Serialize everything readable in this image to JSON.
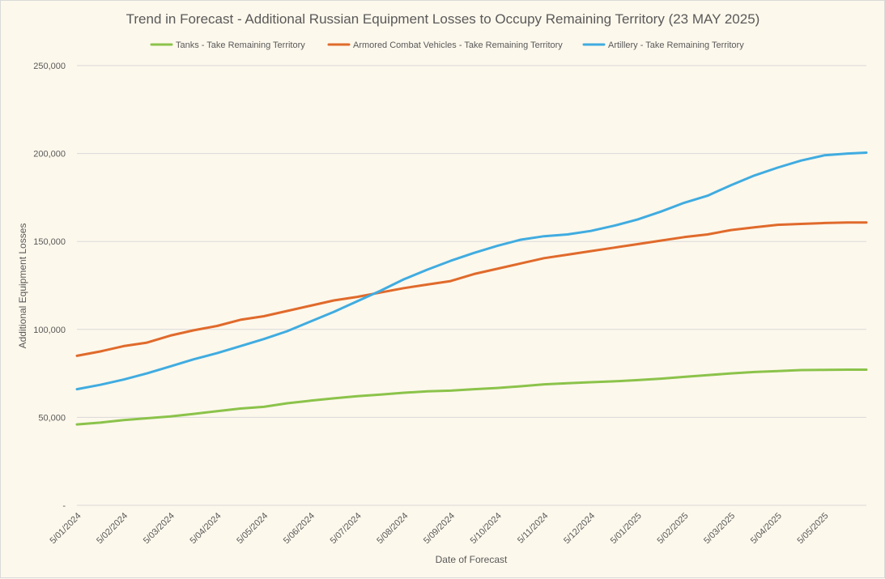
{
  "chart_data": {
    "type": "line",
    "title": "Trend in Forecast - Additional Russian Equipment Losses to Occupy Remaining Territory (23 MAY 2025)",
    "xlabel": "Date of Forecast",
    "ylabel": "Additional Equipment Losses",
    "ylim": [
      0,
      250000
    ],
    "yticks": [
      0,
      50000,
      100000,
      150000,
      200000,
      250000
    ],
    "ytick_labels": [
      "-",
      "50,000",
      "100,000",
      "150,000",
      "200,000",
      "250,000"
    ],
    "xticks": [
      "5/01/2024",
      "5/02/2024",
      "5/03/2024",
      "5/04/2024",
      "5/05/2024",
      "5/06/2024",
      "5/07/2024",
      "5/08/2024",
      "5/09/2024",
      "5/10/2024",
      "5/11/2024",
      "5/12/2024",
      "5/01/2025",
      "5/02/2025",
      "5/03/2025",
      "5/04/2025",
      "5/05/2025"
    ],
    "xlim": [
      0,
      16.9
    ],
    "grid": true,
    "legend_position": "top",
    "series": [
      {
        "name": "Tanks - Take Remaining Territory",
        "color": "#8bc34a",
        "x": [
          0,
          0.5,
          1,
          1.5,
          2,
          2.5,
          3,
          3.5,
          4,
          4.5,
          5,
          5.5,
          6,
          6.5,
          7,
          7.5,
          8,
          8.5,
          9,
          9.5,
          10,
          10.5,
          11,
          11.5,
          12,
          12.5,
          13,
          13.5,
          14,
          14.5,
          15,
          15.5,
          16,
          16.5,
          16.9
        ],
        "values": [
          46000,
          47000,
          48500,
          49500,
          50500,
          52000,
          53500,
          55000,
          56000,
          58000,
          59500,
          60800,
          62000,
          63000,
          64000,
          64800,
          65200,
          66000,
          66700,
          67700,
          68800,
          69400,
          70000,
          70500,
          71200,
          72000,
          73000,
          74000,
          75000,
          75800,
          76300,
          76900,
          77000,
          77100,
          77100
        ]
      },
      {
        "name": "Armored Combat Vehicles - Take Remaining Territory",
        "color": "#e06a2b",
        "x": [
          0,
          0.5,
          1,
          1.5,
          2,
          2.5,
          3,
          3.5,
          4,
          4.5,
          5,
          5.5,
          6,
          6.5,
          7,
          7.5,
          8,
          8.5,
          9,
          9.5,
          10,
          10.5,
          11,
          11.5,
          12,
          12.5,
          13,
          13.5,
          14,
          14.5,
          15,
          15.5,
          16,
          16.5,
          16.9
        ],
        "values": [
          85000,
          87500,
          90500,
          92500,
          96500,
          99500,
          102000,
          105500,
          107500,
          110500,
          113500,
          116500,
          118500,
          121000,
          123500,
          125500,
          127500,
          131500,
          134500,
          137500,
          140500,
          142500,
          144500,
          146500,
          148500,
          150500,
          152500,
          154000,
          156500,
          158000,
          159500,
          160000,
          160500,
          160800,
          160800
        ]
      },
      {
        "name": "Artillery - Take Remaining Territory",
        "color": "#40ace0",
        "x": [
          0,
          0.5,
          1,
          1.5,
          2,
          2.5,
          3,
          3.5,
          4,
          4.5,
          5,
          5.5,
          6,
          6.5,
          7,
          7.5,
          8,
          8.5,
          9,
          9.5,
          10,
          10.5,
          11,
          11.5,
          12,
          12.5,
          13,
          13.5,
          14,
          14.5,
          15,
          15.5,
          16,
          16.5,
          16.9
        ],
        "values": [
          66000,
          68500,
          71500,
          75000,
          79000,
          83000,
          86500,
          90500,
          94500,
          99000,
          104500,
          110000,
          116000,
          122000,
          128500,
          134000,
          139000,
          143500,
          147500,
          151000,
          153000,
          154000,
          156000,
          159000,
          162500,
          167000,
          172000,
          176000,
          182000,
          187500,
          192000,
          196000,
          199000,
          200000,
          200500
        ]
      }
    ]
  }
}
